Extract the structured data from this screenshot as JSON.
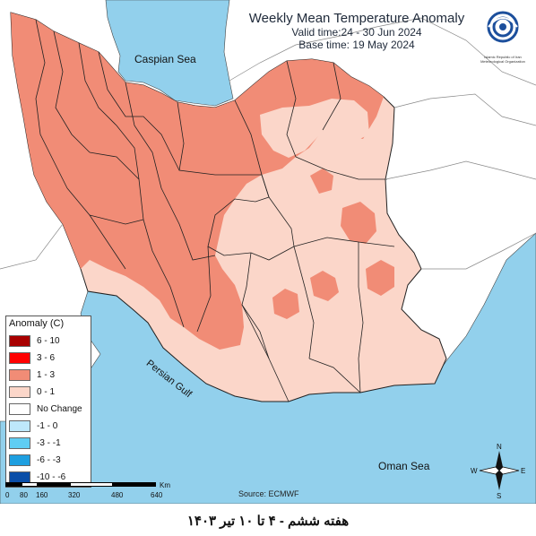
{
  "header": {
    "title": "Weekly Mean Temperature Anomaly",
    "valid_time": "Valid time:24 - 30 Jun 2024",
    "base_time": "Base time: 19 May 2024"
  },
  "logo": {
    "name": "IRIMO logo",
    "text": "Islamic Republic of Iran Meteorological Organization"
  },
  "legend": {
    "title": "Anomaly (C)",
    "items": [
      {
        "label": "6 - 10",
        "color": "#a80000"
      },
      {
        "label": "3 - 6",
        "color": "#ff0000"
      },
      {
        "label": "1 - 3",
        "color": "#f18c76"
      },
      {
        "label": "0 - 1",
        "color": "#fbd6c9"
      },
      {
        "label": "No Change",
        "color": "#ffffff"
      },
      {
        "label": "-1 - 0",
        "color": "#bee8fb"
      },
      {
        "label": "-3 - -1",
        "color": "#5fcdf3"
      },
      {
        "label": "-6 - -3",
        "color": "#1e9fe0"
      },
      {
        "label": "-10 - -6",
        "color": "#0a4ea8"
      }
    ]
  },
  "map": {
    "water_color": "#92d0ec",
    "labels": {
      "caspian": "Caspian Sea",
      "gulf": "Persian Gulf",
      "oman": "Oman Sea"
    },
    "compass": {
      "n": "N",
      "s": "S",
      "e": "E",
      "w": "W"
    }
  },
  "scale": {
    "ticks": [
      "0",
      "80",
      "160",
      "320",
      "480",
      "640"
    ],
    "unit": "Km"
  },
  "source": "Source: ECMWF",
  "footer": "هفته ششم - ۴ تا ۱۰ تیر ۱۴۰۳"
}
